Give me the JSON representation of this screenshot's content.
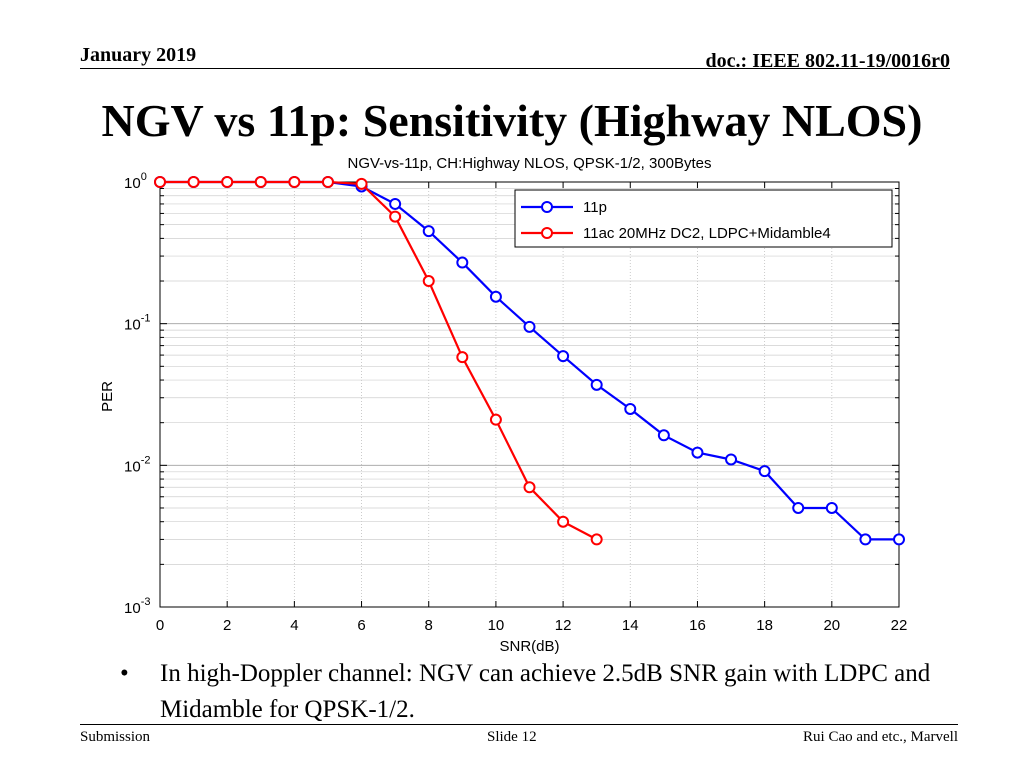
{
  "header": {
    "date": "January 2019",
    "doc_id": "doc.: IEEE 802.11-19/0016r0"
  },
  "slide": {
    "title": "NGV vs 11p: Sensitivity (Highway NLOS)"
  },
  "bullet": {
    "symbol": "•",
    "text": "In high-Doppler channel: NGV can achieve 2.5dB SNR gain with LDPC and Midamble for QPSK-1/2."
  },
  "footer": {
    "left": "Submission",
    "center": "Slide 12",
    "right": "Rui Cao and etc., Marvell"
  },
  "chart_data": {
    "type": "line",
    "title": "NGV-vs-11p, CH:Highway NLOS, QPSK-1/2, 300Bytes",
    "xlabel": "SNR(dB)",
    "ylabel": "PER",
    "xlim": [
      0,
      22
    ],
    "ylim": [
      0.001,
      1
    ],
    "yscale": "log",
    "xticks": [
      "0",
      "2",
      "4",
      "6",
      "8",
      "10",
      "12",
      "14",
      "16",
      "18",
      "20",
      "22"
    ],
    "yticks": [
      {
        "base": "10",
        "exp": "0"
      },
      {
        "base": "10",
        "exp": "-1"
      },
      {
        "base": "10",
        "exp": "-2"
      },
      {
        "base": "10",
        "exp": "-3"
      }
    ],
    "grid": true,
    "legend_position": "top-right",
    "series": [
      {
        "name": "11p",
        "color": "#0000ff",
        "marker": "circle",
        "x": [
          0,
          1,
          2,
          3,
          4,
          5,
          6,
          7,
          8,
          9,
          10,
          11,
          12,
          13,
          14,
          15,
          16,
          17,
          18,
          19,
          20,
          21,
          22
        ],
        "y": [
          1,
          1,
          1,
          1,
          1,
          1,
          0.93,
          0.7,
          0.45,
          0.27,
          0.155,
          0.095,
          0.059,
          0.037,
          0.025,
          0.0163,
          0.0123,
          0.011,
          0.0091,
          0.005,
          0.005,
          0.003,
          0.003
        ]
      },
      {
        "name": "11ac 20MHz DC2, LDPC+Midamble4",
        "color": "#ff0000",
        "marker": "circle",
        "x": [
          0,
          1,
          2,
          3,
          4,
          5,
          6,
          7,
          8,
          9,
          10,
          11,
          12,
          13
        ],
        "y": [
          1,
          1,
          1,
          1,
          1,
          1,
          0.97,
          0.57,
          0.2,
          0.058,
          0.021,
          0.007,
          0.004,
          0.003
        ]
      }
    ]
  }
}
